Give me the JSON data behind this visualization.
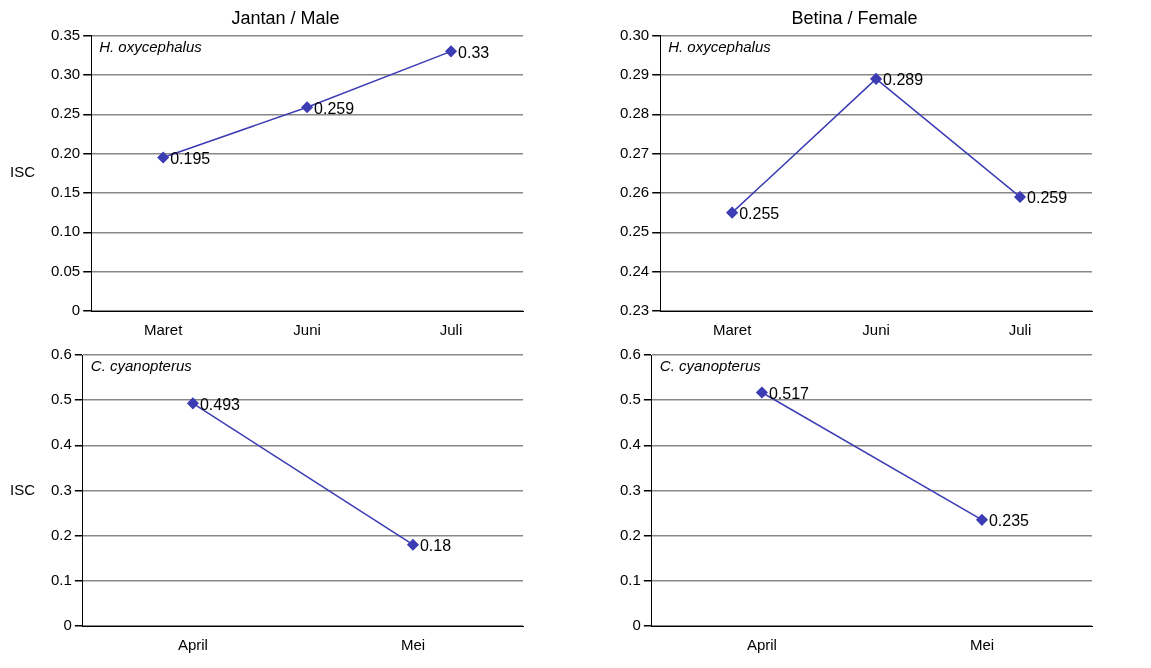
{
  "chart_data": [
    {
      "type": "line",
      "title": "Jantan / Male",
      "ylabel": "ISC",
      "annotations": [
        "H. oxycephalus"
      ],
      "categories": [
        "Maret",
        "Juni",
        "Juli"
      ],
      "series": [
        {
          "color": "#3c3cb4",
          "values": [
            0.195,
            0.259,
            0.33
          ]
        }
      ],
      "ylim": [
        0,
        0.35
      ],
      "yticks": [
        0,
        0.05,
        {
          "value": 0.1,
          "label": "0.10"
        },
        0.15,
        {
          "value": 0.2,
          "label": "0.20"
        },
        0.25,
        {
          "value": 0.3,
          "label": "0.30"
        },
        0.35
      ],
      "grid": "y",
      "marker": "diamond",
      "line_style": "solid",
      "data_labels": true
    },
    {
      "type": "line",
      "title": "Betina / Female",
      "annotations": [
        "H. oxycephalus"
      ],
      "categories": [
        "Maret",
        "Juni",
        "Juli"
      ],
      "series": [
        {
          "color": "#3c3cb4",
          "values": [
            0.255,
            0.289,
            0.259
          ]
        }
      ],
      "ylim": [
        0.23,
        0.3
      ],
      "yticks": [
        0.23,
        0.24,
        0.25,
        0.26,
        0.27,
        0.28,
        0.29,
        {
          "value": 0.3,
          "label": "0.30"
        }
      ],
      "grid": "y",
      "marker": "diamond",
      "line_style": "solid",
      "data_labels": true
    },
    {
      "type": "line",
      "ylabel": "ISC",
      "annotations": [
        "C. cyanopterus"
      ],
      "categories": [
        "April",
        "Mei"
      ],
      "series": [
        {
          "color": "#3c3cb4",
          "values": [
            0.493,
            0.18
          ]
        }
      ],
      "ylim": [
        0,
        0.6
      ],
      "yticks": [
        0,
        0.1,
        0.2,
        0.3,
        0.4,
        0.5,
        0.6
      ],
      "grid": "y",
      "marker": "diamond",
      "line_style": "solid",
      "data_labels": true
    },
    {
      "type": "line",
      "annotations": [
        "C. cyanopterus"
      ],
      "categories": [
        "April",
        "Mei"
      ],
      "series": [
        {
          "color": "#3c3cb4",
          "values": [
            0.517,
            0.235
          ]
        }
      ],
      "ylim": [
        0,
        0.6
      ],
      "yticks": [
        0,
        0.1,
        0.2,
        0.3,
        0.4,
        0.5,
        0.6
      ],
      "grid": "y",
      "marker": "diamond",
      "line_style": "solid",
      "data_labels": true
    }
  ]
}
